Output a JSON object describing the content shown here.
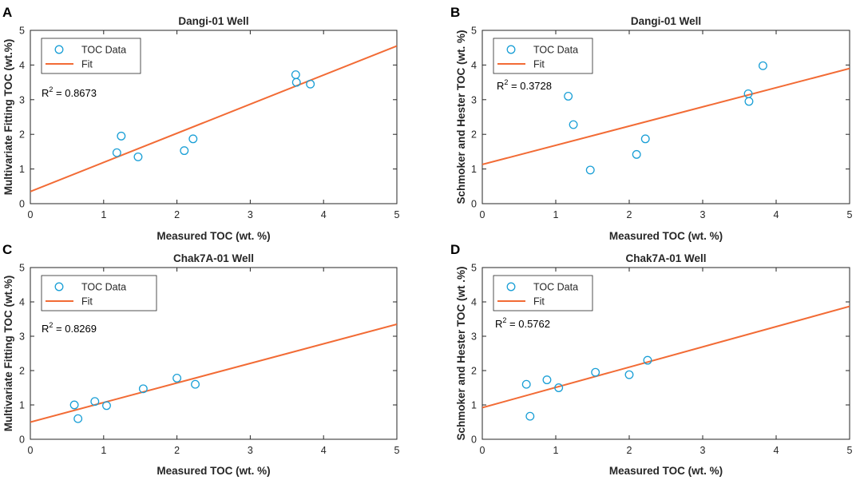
{
  "figure": {
    "background": "#ffffff"
  },
  "colors": {
    "marker": "#1a9fd6",
    "fit": "#f26b35",
    "axis": "#262626"
  },
  "chart_data": [
    {
      "panel": "A",
      "type": "scatter",
      "title": "Dangi-01 Well",
      "xlabel": "Measured TOC (wt. %)",
      "ylabel": "Multivariate Fitting TOC (wt.%)",
      "xlim": [
        0,
        5
      ],
      "ylim": [
        0,
        5
      ],
      "xticks": [
        "0",
        "1",
        "2",
        "3",
        "4",
        "5"
      ],
      "yticks": [
        "0",
        "1",
        "2",
        "3",
        "4",
        "5"
      ],
      "legend": {
        "entries": [
          "TOC Data",
          "Fit"
        ],
        "position": "top-left"
      },
      "r2": {
        "prefix": "R",
        "sup": "2",
        "value": " = 0.8673"
      },
      "series": [
        {
          "name": "TOC Data",
          "kind": "points",
          "x": [
            1.18,
            1.24,
            1.47,
            2.1,
            2.22,
            3.62,
            3.63,
            3.82
          ],
          "y": [
            1.47,
            1.95,
            1.35,
            1.53,
            1.87,
            3.72,
            3.5,
            3.45
          ]
        },
        {
          "name": "Fit",
          "kind": "line",
          "x": [
            0,
            5
          ],
          "y": [
            0.35,
            4.55
          ]
        }
      ]
    },
    {
      "panel": "B",
      "type": "scatter",
      "title": "Dangi-01 Well",
      "xlabel": "Measured TOC (wt. %)",
      "ylabel": "Schmoker and Hester  TOC (wt. %)",
      "xlim": [
        0,
        5
      ],
      "ylim": [
        0,
        5
      ],
      "xticks": [
        "0",
        "1",
        "2",
        "3",
        "4",
        "5"
      ],
      "yticks": [
        "0",
        "1",
        "2",
        "3",
        "4",
        "5"
      ],
      "legend": {
        "entries": [
          "TOC Data",
          "Fit"
        ],
        "position": "top-left"
      },
      "r2": {
        "prefix": "R",
        "sup": "2",
        "value": " = 0.3728"
      },
      "series": [
        {
          "name": "TOC Data",
          "kind": "points",
          "x": [
            1.17,
            1.24,
            1.47,
            2.1,
            2.22,
            3.62,
            3.63,
            3.82
          ],
          "y": [
            3.1,
            2.28,
            0.97,
            1.42,
            1.87,
            3.17,
            2.95,
            3.98
          ]
        },
        {
          "name": "Fit",
          "kind": "line",
          "x": [
            0,
            5
          ],
          "y": [
            1.13,
            3.9
          ]
        }
      ]
    },
    {
      "panel": "C",
      "type": "scatter",
      "title": "Chak7A-01 Well",
      "xlabel": "Measured TOC (wt. %)",
      "ylabel": "Multivariate Fitting TOC (wt.%)",
      "xlim": [
        0,
        5
      ],
      "ylim": [
        0,
        5
      ],
      "xticks": [
        "0",
        "1",
        "2",
        "3",
        "4",
        "5"
      ],
      "yticks": [
        "0",
        "1",
        "2",
        "3",
        "4",
        "5"
      ],
      "legend": {
        "entries": [
          "TOC Data",
          "Fit"
        ],
        "position": "top-left"
      },
      "r2": {
        "prefix": "R",
        "sup": "2",
        "value": " = 0.8269"
      },
      "series": [
        {
          "name": "TOC Data",
          "kind": "points",
          "x": [
            0.6,
            0.65,
            0.88,
            1.04,
            1.54,
            2.0,
            2.25
          ],
          "y": [
            1.0,
            0.6,
            1.1,
            0.98,
            1.47,
            1.78,
            1.6
          ]
        },
        {
          "name": "Fit",
          "kind": "line",
          "x": [
            0,
            5
          ],
          "y": [
            0.5,
            3.35
          ]
        }
      ]
    },
    {
      "panel": "D",
      "type": "scatter",
      "title": "Chak7A-01 Well",
      "xlabel": "Measured TOC (wt. %)",
      "ylabel": "Schmoker and Hester  TOC (wt .%)",
      "xlim": [
        0,
        5
      ],
      "ylim": [
        0,
        5
      ],
      "xticks": [
        "0",
        "1",
        "2",
        "3",
        "4",
        "5"
      ],
      "yticks": [
        "0",
        "1",
        "2",
        "3",
        "4",
        "5"
      ],
      "legend": {
        "entries": [
          "TOC Data",
          "Fit"
        ],
        "position": "top-left"
      },
      "r2": {
        "prefix": "R",
        "sup": "2",
        "value": " = 0.5762"
      },
      "series": [
        {
          "name": "TOC Data",
          "kind": "points",
          "x": [
            0.6,
            0.65,
            0.88,
            1.04,
            1.54,
            2.0,
            2.25
          ],
          "y": [
            1.6,
            0.67,
            1.73,
            1.5,
            1.95,
            1.88,
            2.3
          ]
        },
        {
          "name": "Fit",
          "kind": "line",
          "x": [
            0,
            5
          ],
          "y": [
            0.92,
            3.87
          ]
        }
      ]
    }
  ]
}
